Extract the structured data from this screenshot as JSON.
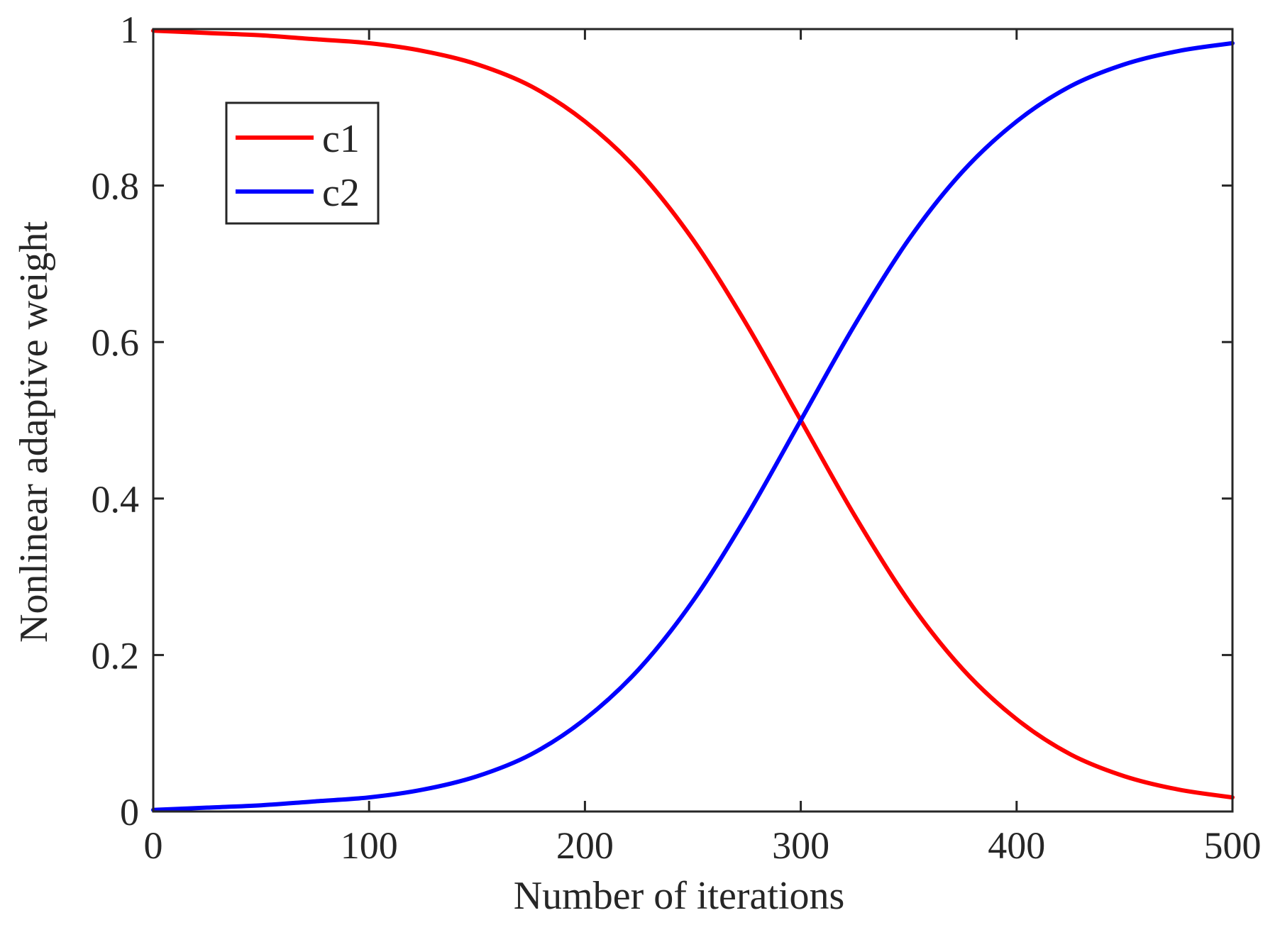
{
  "chart_data": {
    "type": "line",
    "title": "",
    "xlabel": "Number of iterations",
    "ylabel": "Nonlinear adaptive weight",
    "xlim": [
      0,
      500
    ],
    "ylim": [
      0,
      1
    ],
    "xticks": [
      "0",
      "100",
      "200",
      "300",
      "400",
      "500"
    ],
    "yticks": [
      "0",
      "0.2",
      "0.4",
      "0.6",
      "0.8",
      "1"
    ],
    "grid": false,
    "legend_position": "top-left",
    "x": [
      0,
      25,
      50,
      75,
      100,
      125,
      150,
      175,
      200,
      225,
      250,
      275,
      300,
      325,
      350,
      375,
      400,
      425,
      450,
      475,
      500
    ],
    "series": [
      {
        "name": "c1",
        "color": "#ff0000",
        "values": [
          0.998,
          0.995,
          0.992,
          0.987,
          0.982,
          0.972,
          0.955,
          0.927,
          0.882,
          0.818,
          0.731,
          0.622,
          0.5,
          0.378,
          0.269,
          0.182,
          0.118,
          0.073,
          0.045,
          0.028,
          0.018
        ]
      },
      {
        "name": "c2",
        "color": "#0000ff",
        "values": [
          0.002,
          0.005,
          0.008,
          0.013,
          0.018,
          0.028,
          0.045,
          0.073,
          0.118,
          0.182,
          0.269,
          0.378,
          0.5,
          0.622,
          0.731,
          0.818,
          0.882,
          0.927,
          0.955,
          0.972,
          0.982
        ]
      }
    ]
  }
}
